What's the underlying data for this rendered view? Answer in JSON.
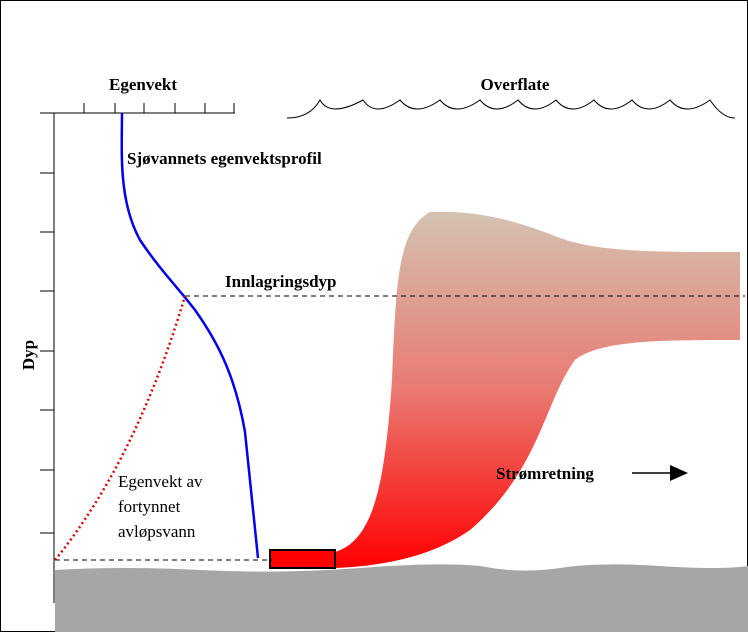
{
  "labels": {
    "density": "Egenvekt",
    "surface": "Overflate",
    "profile": "Sjøvannets egenvektsprofil",
    "trap_depth": "Innlagringsdyp",
    "depth": "Dyp",
    "effluent": [
      "Egenvekt av",
      "fortynnet",
      "avløpsvann"
    ],
    "current": "Strømretning"
  }
}
